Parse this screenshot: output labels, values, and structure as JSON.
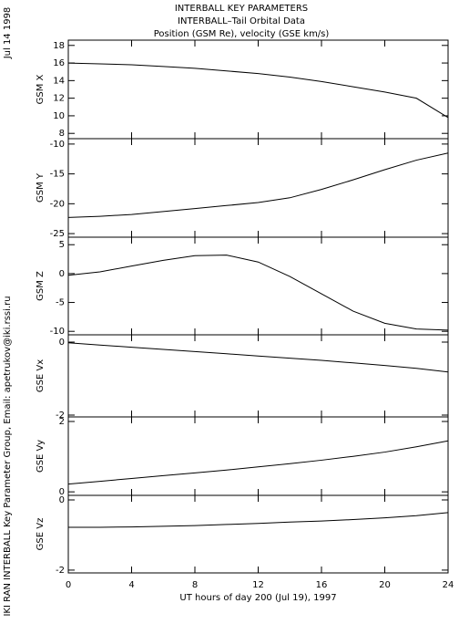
{
  "header": {
    "title_lines": [
      "INTERBALL KEY PARAMETERS",
      "INTERBALL–Tail Orbital Data",
      "Position (GSM Re), velocity (GSE km/s)"
    ],
    "date": "Jul 14 1998",
    "credit": "IKI RAN INTERBALL Key Parameter Group, Email: apetrukov@iki.rssi.ru"
  },
  "chart_data": [
    {
      "type": "line",
      "y_label": "GSM X",
      "color": "#000000",
      "x": [
        0,
        2,
        4,
        6,
        8,
        10,
        12,
        14,
        16,
        18,
        20,
        22,
        24
      ],
      "values": [
        16.0,
        15.9,
        15.8,
        15.6,
        15.4,
        15.1,
        14.8,
        14.4,
        13.9,
        13.3,
        12.7,
        12.0,
        9.8
      ],
      "xlim": [
        0,
        24
      ],
      "xticks": [
        0,
        4,
        8,
        12,
        16,
        20,
        24
      ],
      "ylim": [
        7.4,
        18.6
      ],
      "yticks": [
        8,
        10,
        12,
        14,
        16,
        18
      ]
    },
    {
      "type": "line",
      "y_label": "GSM Y",
      "color": "#000000",
      "x": [
        0,
        2,
        4,
        6,
        8,
        10,
        12,
        14,
        16,
        18,
        20,
        22,
        24
      ],
      "values": [
        -22.3,
        -22.1,
        -21.8,
        -21.3,
        -20.8,
        -20.3,
        -19.8,
        -19.0,
        -17.6,
        -16.0,
        -14.3,
        -12.7,
        -11.5
      ],
      "xlim": [
        0,
        24
      ],
      "xticks": [
        0,
        4,
        8,
        12,
        16,
        20,
        24
      ],
      "ylim": [
        -25.6,
        -9.1
      ],
      "yticks": [
        -25,
        -20,
        -15,
        -10
      ]
    },
    {
      "type": "line",
      "y_label": "GSM Z",
      "color": "#000000",
      "x": [
        0,
        2,
        4,
        6,
        8,
        10,
        12,
        14,
        16,
        18,
        20,
        22,
        24
      ],
      "values": [
        -0.3,
        0.3,
        1.3,
        2.3,
        3.1,
        3.2,
        2.0,
        -0.5,
        -3.5,
        -6.5,
        -8.6,
        -9.6,
        -9.8
      ],
      "xlim": [
        0,
        24
      ],
      "xticks": [
        0,
        4,
        8,
        12,
        16,
        20,
        24
      ],
      "ylim": [
        -10.6,
        6.3
      ],
      "yticks": [
        -10,
        -5,
        0,
        5
      ]
    },
    {
      "type": "line",
      "y_label": "GSE Vx",
      "color": "#000000",
      "x": [
        0,
        2,
        4,
        6,
        8,
        10,
        12,
        14,
        16,
        18,
        20,
        22,
        24
      ],
      "values": [
        -0.02,
        -0.08,
        -0.14,
        -0.2,
        -0.26,
        -0.32,
        -0.38,
        -0.44,
        -0.5,
        -0.57,
        -0.64,
        -0.72,
        -0.82
      ],
      "xlim": [
        0,
        24
      ],
      "xticks": [
        0,
        4,
        8,
        12,
        16,
        20,
        24
      ],
      "ylim": [
        -2.05,
        0.2
      ],
      "yticks": [
        -2,
        0
      ]
    },
    {
      "type": "line",
      "y_label": "GSE Vy",
      "color": "#000000",
      "x": [
        0,
        2,
        4,
        6,
        8,
        10,
        12,
        14,
        16,
        18,
        20,
        22,
        24
      ],
      "values": [
        0.22,
        0.3,
        0.38,
        0.46,
        0.54,
        0.62,
        0.71,
        0.8,
        0.9,
        1.01,
        1.13,
        1.28,
        1.45
      ],
      "xlim": [
        0,
        24
      ],
      "xticks": [
        0,
        4,
        8,
        12,
        16,
        20,
        24
      ],
      "ylim": [
        -0.1,
        2.13
      ],
      "yticks": [
        0,
        2
      ]
    },
    {
      "type": "line",
      "y_label": "GSE Vz",
      "x_label": "UT hours of day 200 (Jul 19), 1997",
      "color": "#000000",
      "x": [
        0,
        2,
        4,
        6,
        8,
        10,
        12,
        14,
        16,
        18,
        20,
        22,
        24
      ],
      "values": [
        -0.78,
        -0.78,
        -0.77,
        -0.75,
        -0.73,
        -0.7,
        -0.67,
        -0.63,
        -0.6,
        -0.56,
        -0.51,
        -0.45,
        -0.36
      ],
      "xlim": [
        0,
        24
      ],
      "xticks": [
        0,
        4,
        8,
        12,
        16,
        20,
        24
      ],
      "ylim": [
        -2.08,
        0.13
      ],
      "yticks": [
        -2,
        0
      ]
    }
  ]
}
